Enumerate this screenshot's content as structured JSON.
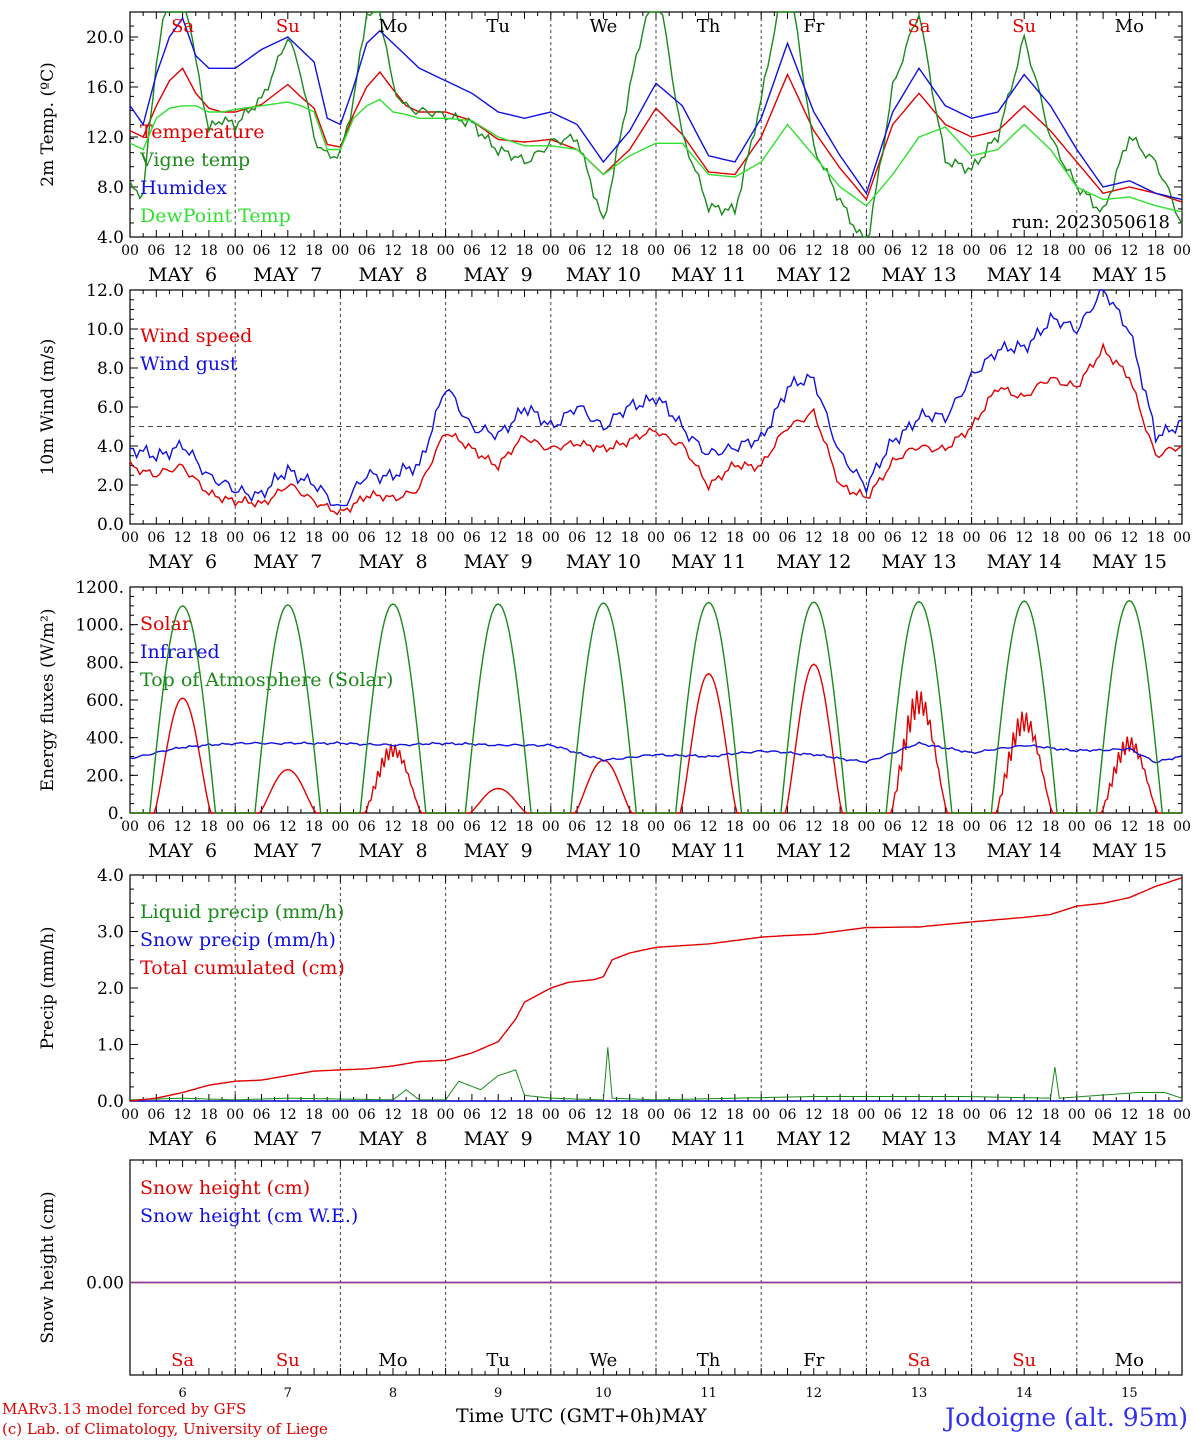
{
  "run_label": "run: 2023050618",
  "x_axis_label": "Time UTC (GMT+0h)",
  "month_label": "MAY",
  "station": "Jodoigne (alt. 95m)",
  "credits": [
    "MARv3.13 model forced by GFS",
    "(c) Lab. of Climatology, University of Liege"
  ],
  "hour_ticks": [
    "00",
    "06",
    "12",
    "18"
  ],
  "date_labels": [
    "MAY  6",
    "MAY  7",
    "MAY  8",
    "MAY  9",
    "MAY 10",
    "MAY 11",
    "MAY 12",
    "MAY 13",
    "MAY 14",
    "MAY 15"
  ],
  "day_numbers": [
    "6",
    "7",
    "8",
    "9",
    "10",
    "11",
    "12",
    "13",
    "14",
    "15"
  ],
  "weekdays": [
    {
      "label": "Sa",
      "color": "#e00000"
    },
    {
      "label": "Su",
      "color": "#e00000"
    },
    {
      "label": "Mo",
      "color": "#000000"
    },
    {
      "label": "Tu",
      "color": "#000000"
    },
    {
      "label": "We",
      "color": "#000000"
    },
    {
      "label": "Th",
      "color": "#000000"
    },
    {
      "label": "Fr",
      "color": "#000000"
    },
    {
      "label": "Sa",
      "color": "#e00000"
    },
    {
      "label": "Su",
      "color": "#e00000"
    },
    {
      "label": "Mo",
      "color": "#000000"
    }
  ],
  "chart_data": [
    {
      "type": "line",
      "ylabel": "2m Temp. (ºC)",
      "ylim": [
        4.0,
        22.0
      ],
      "yticks": [
        "4.0",
        "8.0",
        "12.0",
        "16.0",
        "20.0"
      ],
      "x_unit": "hours since 2023-05-06 00 UTC",
      "series": [
        {
          "name": "Temperature",
          "color": "#e00000",
          "x": [
            0,
            3,
            6,
            9,
            12,
            15,
            18,
            21,
            24,
            30,
            36,
            39,
            42,
            45,
            48,
            51,
            54,
            57,
            60,
            63,
            66,
            72,
            78,
            84,
            90,
            96,
            102,
            108,
            114,
            120,
            126,
            132,
            138,
            144,
            150,
            156,
            162,
            168,
            174,
            180,
            186,
            192,
            198,
            204,
            210,
            216,
            222,
            228,
            234,
            240
          ],
          "y": [
            12.5,
            12.0,
            14.5,
            16.5,
            17.5,
            15.5,
            14.3,
            14.0,
            14.0,
            14.6,
            16.2,
            15.2,
            14.3,
            11.4,
            11.2,
            13.8,
            16.0,
            17.2,
            15.8,
            14.5,
            14.0,
            14.0,
            13.3,
            11.8,
            11.6,
            11.8,
            11.0,
            9.0,
            11.0,
            14.3,
            12.2,
            9.2,
            9.0,
            12.0,
            17.0,
            12.5,
            9.5,
            7.0,
            13.0,
            15.5,
            13.0,
            12.0,
            12.5,
            14.5,
            12.5,
            10.0,
            7.5,
            8.0,
            7.5,
            6.8
          ]
        },
        {
          "name": "Vigne temp",
          "color": "#1a8a1a",
          "x": [
            0,
            3,
            6,
            9,
            12,
            15,
            18,
            21,
            24,
            30,
            36,
            39,
            42,
            45,
            48,
            51,
            54,
            57,
            60,
            63,
            66,
            72,
            78,
            84,
            90,
            96,
            102,
            108,
            114,
            120,
            126,
            132,
            138,
            144,
            150,
            156,
            162,
            168,
            174,
            180,
            186,
            192,
            198,
            204,
            210,
            216,
            222,
            228,
            234,
            240
          ],
          "y": [
            8.0,
            7.5,
            18.0,
            24.0,
            25.0,
            18.0,
            12.5,
            13.5,
            13.0,
            15.0,
            20.0,
            17.0,
            12.0,
            10.5,
            10.5,
            15.0,
            22.0,
            22.0,
            16.0,
            14.5,
            14.0,
            13.8,
            13.0,
            11.0,
            10.0,
            11.5,
            12.0,
            5.0,
            16.0,
            25.0,
            12.0,
            6.5,
            6.0,
            15.0,
            26.0,
            11.0,
            7.0,
            3.0,
            16.0,
            22.0,
            10.0,
            9.5,
            12.0,
            20.0,
            12.0,
            8.0,
            6.0,
            12.0,
            10.0,
            5.0
          ]
        },
        {
          "name": "Humidex",
          "color": "#1010e0",
          "x": [
            0,
            3,
            6,
            9,
            12,
            15,
            18,
            21,
            24,
            30,
            36,
            39,
            42,
            45,
            48,
            51,
            54,
            57,
            60,
            63,
            66,
            72,
            78,
            84,
            90,
            96,
            102,
            108,
            114,
            120,
            126,
            132,
            138,
            144,
            150,
            156,
            162,
            168,
            174,
            180,
            186,
            192,
            198,
            204,
            210,
            216,
            222,
            228,
            234,
            240
          ],
          "y": [
            14.5,
            13.0,
            17.0,
            20.0,
            21.5,
            18.5,
            17.5,
            17.5,
            17.5,
            19.0,
            20.0,
            19.0,
            18.0,
            13.5,
            13.0,
            16.0,
            19.5,
            20.5,
            19.5,
            18.5,
            17.5,
            16.5,
            15.5,
            14.0,
            13.5,
            14.0,
            13.0,
            10.0,
            12.5,
            16.3,
            14.5,
            10.5,
            10.0,
            13.5,
            19.5,
            14.0,
            10.5,
            7.5,
            14.0,
            17.5,
            14.5,
            13.5,
            14.0,
            17.0,
            14.5,
            11.0,
            8.0,
            8.5,
            7.5,
            7.0
          ]
        },
        {
          "name": "DewPoint Temp",
          "color": "#30e030",
          "x": [
            0,
            3,
            6,
            9,
            12,
            15,
            18,
            21,
            24,
            30,
            36,
            39,
            42,
            45,
            48,
            51,
            54,
            57,
            60,
            63,
            66,
            72,
            78,
            84,
            90,
            96,
            102,
            108,
            114,
            120,
            126,
            132,
            138,
            144,
            150,
            156,
            162,
            168,
            174,
            180,
            186,
            192,
            198,
            204,
            210,
            216,
            222,
            228,
            234,
            240
          ],
          "y": [
            11.5,
            11.0,
            13.5,
            14.3,
            14.5,
            14.5,
            14.0,
            14.0,
            14.2,
            14.5,
            14.8,
            14.5,
            14.0,
            11.0,
            11.0,
            13.5,
            14.5,
            15.0,
            14.0,
            13.8,
            13.5,
            13.5,
            13.3,
            12.0,
            11.3,
            11.3,
            11.0,
            9.0,
            10.5,
            11.5,
            11.5,
            9.0,
            8.8,
            10.0,
            13.0,
            10.5,
            8.0,
            6.5,
            9.0,
            12.0,
            12.8,
            10.5,
            11.0,
            13.0,
            11.0,
            8.0,
            7.0,
            7.2,
            6.5,
            6.0
          ]
        }
      ]
    },
    {
      "type": "line",
      "ylabel": "10m Wind (m/s)",
      "ylim": [
        0.0,
        12.0
      ],
      "yticks": [
        "0.0",
        "2.0",
        "4.0",
        "6.0",
        "8.0",
        "10.0",
        "12.0"
      ],
      "reference_line": 5.0,
      "series": [
        {
          "name": "Wind speed",
          "color": "#e00000",
          "x": [
            0,
            6,
            12,
            18,
            24,
            30,
            36,
            42,
            48,
            54,
            60,
            66,
            72,
            78,
            84,
            90,
            96,
            102,
            108,
            114,
            120,
            126,
            132,
            138,
            144,
            150,
            156,
            162,
            168,
            174,
            180,
            186,
            192,
            198,
            204,
            210,
            216,
            222,
            228,
            234,
            240
          ],
          "y": [
            3.0,
            2.5,
            3.0,
            1.5,
            1.2,
            1.0,
            2.0,
            1.2,
            0.5,
            1.5,
            1.3,
            1.8,
            4.8,
            3.8,
            3.0,
            4.5,
            3.8,
            4.2,
            3.8,
            4.3,
            4.8,
            4.0,
            2.0,
            3.0,
            3.0,
            5.0,
            5.7,
            2.0,
            1.3,
            3.2,
            4.0,
            3.8,
            5.0,
            7.0,
            6.5,
            7.5,
            7.0,
            9.0,
            7.5,
            3.5,
            4.0
          ]
        },
        {
          "name": "Wind gust",
          "color": "#1010e0",
          "x": [
            0,
            6,
            12,
            18,
            24,
            30,
            36,
            42,
            48,
            54,
            60,
            66,
            72,
            78,
            84,
            90,
            96,
            102,
            108,
            114,
            120,
            126,
            132,
            138,
            144,
            150,
            156,
            162,
            168,
            174,
            180,
            186,
            192,
            198,
            204,
            210,
            216,
            222,
            228,
            234,
            240
          ],
          "y": [
            3.8,
            3.5,
            4.0,
            2.5,
            1.7,
            1.5,
            2.8,
            2.0,
            0.8,
            2.5,
            2.5,
            3.0,
            7.0,
            5.0,
            4.5,
            6.0,
            5.0,
            6.0,
            5.0,
            6.0,
            6.5,
            5.0,
            3.5,
            4.0,
            4.3,
            7.0,
            7.5,
            3.5,
            2.0,
            4.2,
            5.5,
            5.5,
            7.5,
            9.0,
            9.0,
            10.5,
            10.0,
            12.0,
            10.0,
            4.5,
            5.2
          ]
        }
      ]
    },
    {
      "type": "line",
      "ylabel": "Energy fluxes (W/m²)",
      "ylim": [
        0,
        1200
      ],
      "yticks": [
        "0.",
        "200.",
        "400.",
        "600.",
        "800.",
        "1000.",
        "1200."
      ],
      "series": [
        {
          "name": "Solar",
          "color": "#e00000",
          "daily_peaks": [
            610,
            230,
            390,
            130,
            280,
            740,
            790,
            690,
            570,
            430
          ]
        },
        {
          "name": "Infrared",
          "color": "#1010e0",
          "x": [
            0,
            12,
            24,
            36,
            48,
            60,
            72,
            84,
            96,
            108,
            120,
            132,
            144,
            156,
            168,
            180,
            192,
            204,
            216,
            228,
            234,
            240
          ],
          "y": [
            290,
            350,
            370,
            370,
            370,
            360,
            370,
            360,
            360,
            280,
            310,
            300,
            330,
            310,
            270,
            370,
            320,
            360,
            330,
            340,
            270,
            300
          ]
        },
        {
          "name": "Top of Atmosphere (Solar)",
          "color": "#1a8a1a",
          "daily_peaks": [
            1100,
            1105,
            1110,
            1110,
            1115,
            1118,
            1120,
            1122,
            1125,
            1128
          ]
        }
      ]
    },
    {
      "type": "line",
      "ylabel": "Precip (mm/h)",
      "ylim": [
        0.0,
        4.0
      ],
      "yticks": [
        "0.0",
        "1.0",
        "2.0",
        "3.0",
        "4.0"
      ],
      "series": [
        {
          "name": "Liquid precip (mm/h)",
          "color": "#1a8a1a",
          "x": [
            0,
            12,
            24,
            36,
            60,
            63,
            66,
            72,
            75,
            80,
            84,
            88,
            90,
            96,
            108,
            109,
            110,
            120,
            156,
            190,
            210,
            211,
            212,
            230,
            236,
            240
          ],
          "y": [
            0.02,
            0.05,
            0.02,
            0.05,
            0.02,
            0.2,
            0.02,
            0.02,
            0.35,
            0.2,
            0.45,
            0.55,
            0.1,
            0.05,
            0.02,
            0.95,
            0.05,
            0.02,
            0.08,
            0.08,
            0.05,
            0.6,
            0.05,
            0.15,
            0.15,
            0.05
          ]
        },
        {
          "name": "Snow precip (mm/h)",
          "color": "#1010e0",
          "x": [
            0,
            240
          ],
          "y": [
            0,
            0
          ]
        },
        {
          "name": "Total cumulated (cm)",
          "color": "#e00000",
          "x": [
            0,
            6,
            12,
            18,
            24,
            30,
            36,
            42,
            48,
            54,
            60,
            66,
            72,
            78,
            84,
            88,
            90,
            96,
            100,
            106,
            108,
            110,
            114,
            120,
            132,
            144,
            150,
            156,
            168,
            180,
            192,
            204,
            210,
            216,
            222,
            228,
            234,
            240
          ],
          "y": [
            0.0,
            0.05,
            0.15,
            0.28,
            0.35,
            0.37,
            0.45,
            0.53,
            0.55,
            0.57,
            0.62,
            0.7,
            0.72,
            0.85,
            1.05,
            1.45,
            1.75,
            2.0,
            2.1,
            2.15,
            2.2,
            2.5,
            2.62,
            2.72,
            2.78,
            2.9,
            2.93,
            2.95,
            3.07,
            3.08,
            3.17,
            3.25,
            3.3,
            3.45,
            3.5,
            3.6,
            3.8,
            3.95
          ]
        }
      ]
    },
    {
      "type": "line",
      "ylabel": "Snow height (cm)",
      "yticks": [
        "0.00"
      ],
      "series": [
        {
          "name": "Snow height (cm)",
          "color": "#e00000",
          "x": [
            0,
            240
          ],
          "y": [
            0,
            0
          ]
        },
        {
          "name": "Snow height (cm W.E.)",
          "color": "#1010e0",
          "x": [
            0,
            240
          ],
          "y": [
            0,
            0
          ]
        }
      ]
    }
  ]
}
